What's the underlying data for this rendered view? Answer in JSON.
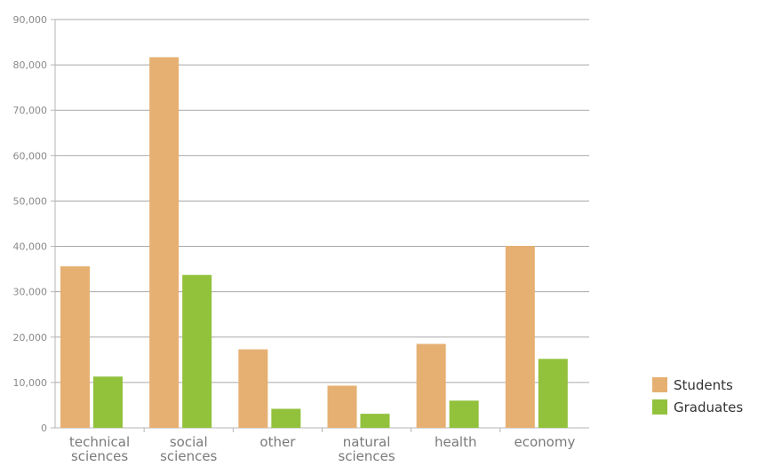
{
  "chart_data": {
    "type": "bar",
    "categories": [
      [
        "technical",
        "sciences"
      ],
      [
        "social",
        "sciences"
      ],
      [
        "other"
      ],
      [
        "natural",
        "sciences"
      ],
      [
        "health"
      ],
      [
        "economy"
      ]
    ],
    "series": [
      {
        "name": "Students",
        "color": "#e6b072",
        "values": [
          35600,
          81700,
          17300,
          9300,
          18500,
          40100
        ]
      },
      {
        "name": "Graduates",
        "color": "#92c13c",
        "values": [
          11300,
          33700,
          4200,
          3100,
          6000,
          15200
        ]
      }
    ],
    "yTicks": [
      "0",
      "10,000",
      "20,000",
      "30,000",
      "40,000",
      "50,000",
      "60,000",
      "70,000",
      "80,000",
      "90,000"
    ],
    "ylim": [
      0,
      90000
    ],
    "grid": true,
    "legend": "right"
  }
}
